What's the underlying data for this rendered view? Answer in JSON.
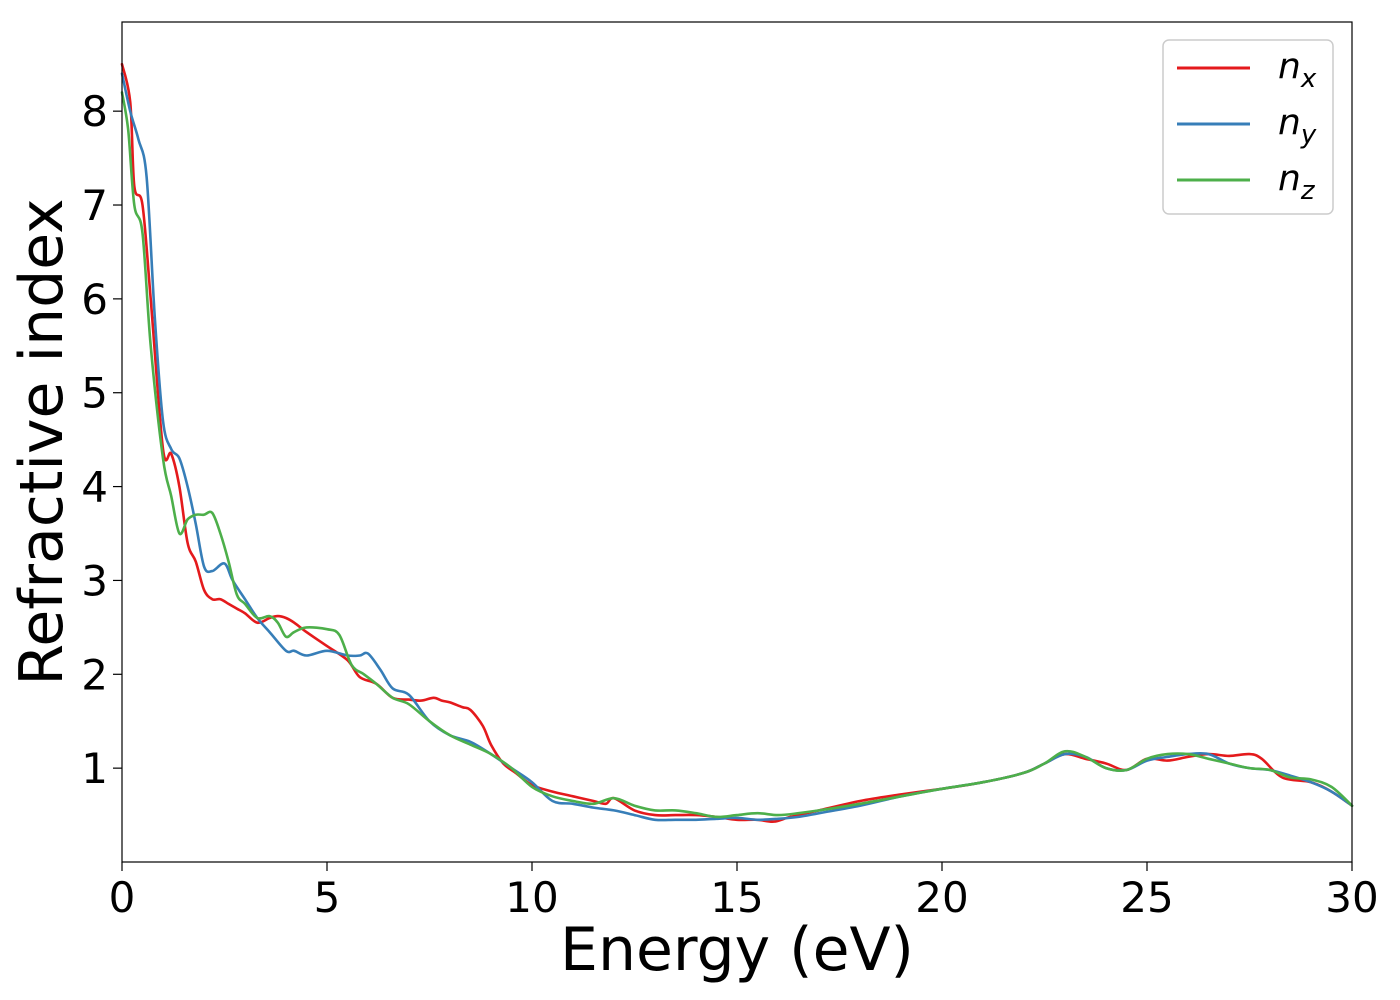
{
  "chart_data": {
    "type": "line",
    "xlabel": "Energy (eV)",
    "ylabel": "Refractive index",
    "xlim": [
      0,
      30
    ],
    "ylim": [
      0.0,
      8.95
    ],
    "xticks": [
      0,
      5,
      10,
      15,
      20,
      25,
      30
    ],
    "yticks": [
      1,
      2,
      3,
      4,
      5,
      6,
      7,
      8
    ],
    "grid": false,
    "legend_position": "top-right",
    "series": [
      {
        "name": "n_x",
        "label_base": "n",
        "label_sub": "x",
        "color": "#e41a1c",
        "x": [
          0,
          0.2,
          0.3,
          0.5,
          0.7,
          1.0,
          1.2,
          1.4,
          1.6,
          1.8,
          2.0,
          2.2,
          2.4,
          2.6,
          2.8,
          3.0,
          3.3,
          3.6,
          3.8,
          4.0,
          4.2,
          4.5,
          5.0,
          5.5,
          5.8,
          6.2,
          6.6,
          7.0,
          7.3,
          7.6,
          7.8,
          8.0,
          8.3,
          8.5,
          8.8,
          9.0,
          9.3,
          9.6,
          10.0,
          10.5,
          11.0,
          11.5,
          11.8,
          12.0,
          12.5,
          13.0,
          13.5,
          14.0,
          14.5,
          15.0,
          15.5,
          15.9,
          16.3,
          17.0,
          18.0,
          19.0,
          20.0,
          21.0,
          22.0,
          22.5,
          23.0,
          23.5,
          24.0,
          24.5,
          25.0,
          25.5,
          26.0,
          26.5,
          27.0,
          27.5,
          27.8,
          28.3,
          29.0,
          29.5,
          30.0
        ],
        "y": [
          8.5,
          8.1,
          7.2,
          7.0,
          6.0,
          4.4,
          4.35,
          4.0,
          3.4,
          3.2,
          2.9,
          2.8,
          2.8,
          2.75,
          2.7,
          2.65,
          2.55,
          2.6,
          2.62,
          2.6,
          2.55,
          2.45,
          2.3,
          2.15,
          1.97,
          1.9,
          1.75,
          1.73,
          1.72,
          1.75,
          1.72,
          1.7,
          1.65,
          1.62,
          1.45,
          1.25,
          1.05,
          0.95,
          0.82,
          0.75,
          0.7,
          0.65,
          0.62,
          0.68,
          0.55,
          0.5,
          0.5,
          0.5,
          0.48,
          0.45,
          0.45,
          0.43,
          0.48,
          0.55,
          0.65,
          0.72,
          0.78,
          0.85,
          0.95,
          1.05,
          1.15,
          1.1,
          1.05,
          0.98,
          1.1,
          1.08,
          1.12,
          1.15,
          1.13,
          1.15,
          1.1,
          0.9,
          0.85,
          0.75,
          0.6
        ]
      },
      {
        "name": "n_y",
        "label_base": "n",
        "label_sub": "y",
        "color": "#377eb8",
        "x": [
          0,
          0.2,
          0.4,
          0.6,
          0.8,
          1.0,
          1.2,
          1.4,
          1.6,
          1.8,
          2.0,
          2.2,
          2.5,
          2.7,
          3.0,
          3.3,
          3.6,
          4.0,
          4.2,
          4.5,
          5.0,
          5.5,
          5.8,
          6.0,
          6.3,
          6.6,
          7.0,
          7.5,
          8.0,
          8.5,
          9.0,
          9.5,
          10.0,
          10.5,
          11.0,
          11.5,
          12.0,
          12.5,
          13.0,
          13.5,
          14.0,
          14.5,
          15.0,
          15.5,
          16.0,
          16.5,
          17.0,
          18.0,
          19.0,
          20.0,
          21.0,
          22.0,
          22.5,
          23.0,
          23.5,
          24.0,
          24.5,
          25.0,
          25.5,
          26.0,
          26.5,
          27.0,
          27.5,
          28.0,
          28.5,
          29.0,
          29.5,
          30.0
        ],
        "y": [
          8.4,
          8.0,
          7.7,
          7.3,
          5.8,
          4.7,
          4.4,
          4.3,
          4.0,
          3.6,
          3.15,
          3.1,
          3.18,
          3.0,
          2.8,
          2.6,
          2.45,
          2.25,
          2.25,
          2.2,
          2.25,
          2.2,
          2.2,
          2.22,
          2.05,
          1.85,
          1.78,
          1.5,
          1.35,
          1.28,
          1.15,
          1.0,
          0.85,
          0.65,
          0.62,
          0.58,
          0.55,
          0.5,
          0.45,
          0.45,
          0.45,
          0.46,
          0.47,
          0.45,
          0.46,
          0.48,
          0.52,
          0.6,
          0.7,
          0.78,
          0.85,
          0.95,
          1.05,
          1.15,
          1.12,
          1.0,
          0.98,
          1.08,
          1.12,
          1.15,
          1.15,
          1.05,
          1.0,
          0.98,
          0.92,
          0.85,
          0.75,
          0.6
        ]
      },
      {
        "name": "n_z",
        "label_base": "n",
        "label_sub": "z",
        "color": "#4daf4a",
        "x": [
          0,
          0.15,
          0.3,
          0.5,
          0.7,
          1.0,
          1.2,
          1.4,
          1.6,
          1.8,
          2.0,
          2.2,
          2.4,
          2.6,
          2.8,
          3.0,
          3.3,
          3.6,
          3.8,
          4.0,
          4.2,
          4.5,
          5.0,
          5.3,
          5.6,
          5.9,
          6.2,
          6.6,
          7.0,
          7.5,
          8.0,
          8.5,
          9.0,
          9.5,
          10.0,
          10.5,
          11.0,
          11.5,
          12.0,
          12.5,
          13.0,
          13.5,
          14.0,
          14.5,
          15.0,
          15.5,
          16.0,
          16.5,
          17.0,
          18.0,
          19.0,
          20.0,
          21.0,
          22.0,
          22.5,
          23.0,
          23.5,
          24.0,
          24.5,
          25.0,
          25.5,
          26.0,
          26.5,
          27.0,
          27.5,
          28.0,
          28.5,
          29.0,
          29.5,
          30.0
        ],
        "y": [
          8.2,
          7.8,
          7.0,
          6.7,
          5.5,
          4.3,
          3.9,
          3.5,
          3.65,
          3.7,
          3.7,
          3.72,
          3.5,
          3.2,
          2.85,
          2.75,
          2.6,
          2.62,
          2.55,
          2.4,
          2.45,
          2.5,
          2.48,
          2.42,
          2.1,
          2.0,
          1.9,
          1.75,
          1.68,
          1.5,
          1.35,
          1.25,
          1.15,
          1.0,
          0.8,
          0.7,
          0.65,
          0.62,
          0.68,
          0.6,
          0.55,
          0.55,
          0.52,
          0.48,
          0.5,
          0.52,
          0.5,
          0.52,
          0.55,
          0.62,
          0.7,
          0.78,
          0.85,
          0.95,
          1.05,
          1.18,
          1.12,
          1.0,
          0.98,
          1.1,
          1.15,
          1.15,
          1.1,
          1.05,
          1.0,
          0.98,
          0.9,
          0.88,
          0.8,
          0.6
        ]
      }
    ]
  }
}
